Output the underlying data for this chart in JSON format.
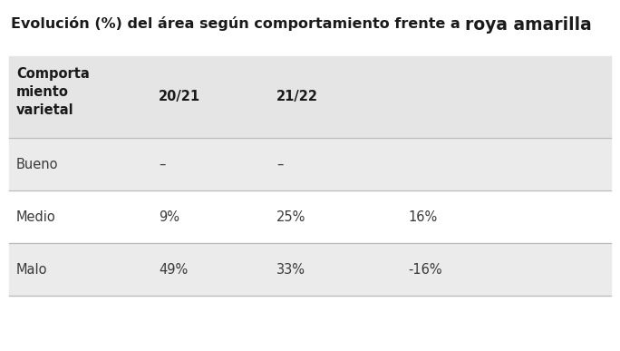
{
  "title_normal": "Evolución (%) del área según comportamiento frente a ",
  "title_bold": "roya amarilla",
  "page_background": "#ffffff",
  "header_bg": "#e5e5e5",
  "row_alt_bg": "#ebebeb",
  "row_plain_bg": "#ffffff",
  "col_header": "Comporta\nmiento\nvarietal",
  "col1": "20/21",
  "col2": "21/22",
  "rows": [
    {
      "label": "Bueno",
      "v1": "–",
      "v2": "–",
      "v3": ""
    },
    {
      "label": "Medio",
      "v1": "9%",
      "v2": "25%",
      "v3": "16%"
    },
    {
      "label": "Malo",
      "v1": "49%",
      "v2": "33%",
      "v3": "-16%"
    }
  ],
  "text_color": "#3a3a3a",
  "header_text_color": "#1a1a1a",
  "divider_color": "#bbbbbb",
  "title_fontsize": 11.5,
  "cell_fontsize": 10.5,
  "header_fontsize": 10.5,
  "fig_width": 6.84,
  "fig_height": 3.87,
  "dpi": 100
}
